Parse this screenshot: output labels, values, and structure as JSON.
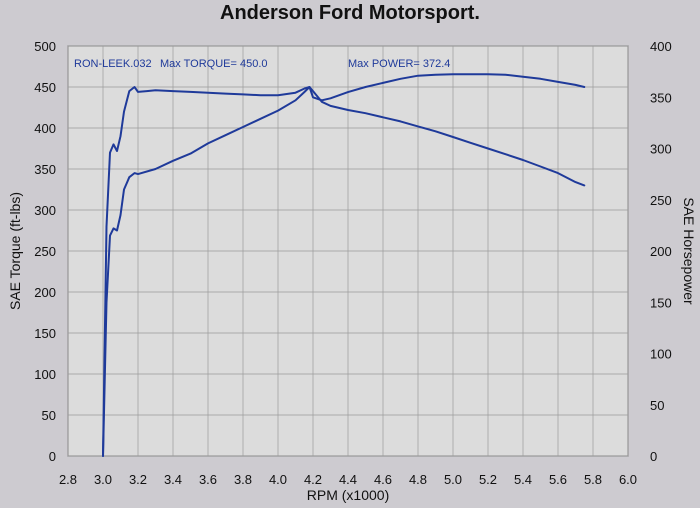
{
  "title": "Anderson Ford Motorsport.",
  "colors": {
    "background": "#cdcbd0",
    "plot": "#dcdcdc",
    "grid": "#9a9a9a",
    "series": "#1f3a9a"
  },
  "annotations": {
    "run": "RON-LEEK.032",
    "max_torque": "Max TORQUE= 450.0",
    "max_power": "Max POWER= 372.4"
  },
  "chart_data": {
    "type": "line",
    "title": "Anderson Ford Motorsport.",
    "xlabel": "RPM (x1000)",
    "ylabel": "SAE Torque (ft-lbs)",
    "y2label": "SAE Horsepower",
    "xlim": [
      2.8,
      6.0
    ],
    "ylim": [
      0,
      500
    ],
    "y2lim": [
      0,
      400
    ],
    "grid": true,
    "xticks": [
      "2.8",
      "3.0",
      "3.2",
      "3.4",
      "3.6",
      "3.8",
      "4.0",
      "4.2",
      "4.4",
      "4.6",
      "4.8",
      "5.0",
      "5.2",
      "5.4",
      "5.6",
      "5.8",
      "6.0"
    ],
    "yticks": [
      "0",
      "50",
      "100",
      "150",
      "200",
      "250",
      "300",
      "350",
      "400",
      "450",
      "500"
    ],
    "y2ticks": [
      "0",
      "50",
      "100",
      "150",
      "200",
      "250",
      "300",
      "350",
      "400"
    ],
    "series": [
      {
        "name": "SAE Torque",
        "axis": "left",
        "x": [
          3.0,
          3.02,
          3.04,
          3.06,
          3.08,
          3.1,
          3.12,
          3.15,
          3.18,
          3.2,
          3.25,
          3.3,
          3.4,
          3.5,
          3.6,
          3.7,
          3.8,
          3.9,
          4.0,
          4.1,
          4.15,
          4.18,
          4.2,
          4.25,
          4.3,
          4.4,
          4.5,
          4.6,
          4.7,
          4.8,
          4.9,
          5.0,
          5.1,
          5.2,
          5.3,
          5.4,
          5.5,
          5.6,
          5.7,
          5.75
        ],
        "values": [
          0,
          280,
          370,
          380,
          372,
          390,
          420,
          445,
          450,
          444,
          445,
          446,
          445,
          444,
          443,
          442,
          441,
          440,
          440,
          443,
          448,
          450,
          445,
          432,
          427,
          422,
          418,
          413,
          408,
          402,
          396,
          389,
          382,
          375,
          368,
          361,
          353,
          345,
          334,
          330
        ]
      },
      {
        "name": "SAE Horsepower",
        "axis": "right",
        "x": [
          3.0,
          3.02,
          3.04,
          3.06,
          3.08,
          3.1,
          3.12,
          3.15,
          3.18,
          3.2,
          3.3,
          3.4,
          3.5,
          3.6,
          3.7,
          3.8,
          3.9,
          4.0,
          4.1,
          4.15,
          4.18,
          4.2,
          4.25,
          4.3,
          4.4,
          4.5,
          4.6,
          4.7,
          4.8,
          4.9,
          5.0,
          5.1,
          5.2,
          5.3,
          5.4,
          5.5,
          5.6,
          5.7,
          5.75
        ],
        "values": [
          0,
          150,
          215,
          222,
          220,
          235,
          260,
          272,
          276,
          275,
          280,
          288,
          295,
          305,
          313,
          321,
          329,
          337,
          347,
          355,
          360,
          350,
          347,
          349,
          355,
          360,
          364,
          368,
          371,
          372,
          372.4,
          372.4,
          372.4,
          372,
          370,
          368,
          365,
          362,
          360
        ]
      }
    ]
  }
}
